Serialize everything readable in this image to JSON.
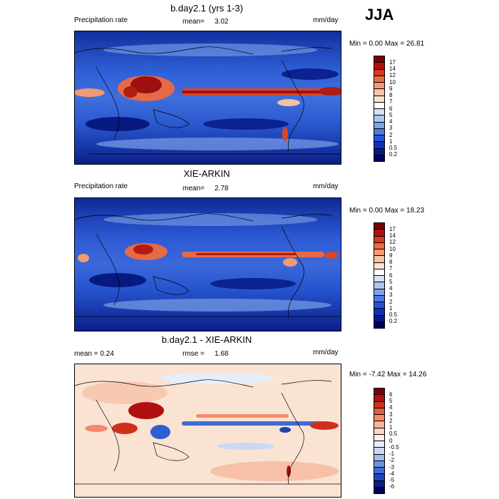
{
  "season": "JJA",
  "panels": [
    {
      "title": "b.day2.1 (yrs 1-3)",
      "left_label": "Precipitation rate",
      "mean_label": "mean=",
      "mean_value": "3.02",
      "units": "mm/day",
      "minmax": "Min =    0.00 Max =   26.81",
      "colorbar_labels": [
        "17",
        "14",
        "12",
        "10",
        "9",
        "8",
        "7",
        "6",
        "5",
        "4",
        "3",
        "2",
        "1",
        "0.5",
        "0.2"
      ]
    },
    {
      "title": "XIE-ARKIN",
      "left_label": "Precipitation rate",
      "mean_label": "mean=",
      "mean_value": "2.78",
      "units": "mm/day",
      "minmax": "Min =    0.00 Max =   18.23",
      "colorbar_labels": [
        "17",
        "14",
        "12",
        "10",
        "9",
        "8",
        "7",
        "6",
        "5",
        "4",
        "3",
        "2",
        "1",
        "0.5",
        "0.2"
      ]
    },
    {
      "title": "b.day2.1 - XIE-ARKIN",
      "left_label": "mean =    0.24",
      "rmse_label": "rmse =",
      "rmse_value": "1.68",
      "units": "mm/day",
      "minmax": "Min =  -7.42 Max =  14.26",
      "colorbar_labels": [
        "6",
        "5",
        "4",
        "3",
        "2",
        "1",
        "0.5",
        "0",
        "-0.5",
        "-1",
        "-2",
        "-3",
        "-4",
        "-5",
        "-6"
      ]
    }
  ],
  "colors": {
    "precip_scale": [
      "#7a0000",
      "#b40f0f",
      "#d8381d",
      "#ec6a43",
      "#f49a74",
      "#f8c3a6",
      "#fbe3d2",
      "#ffffff",
      "#d6e3f7",
      "#adc6f0",
      "#7fa2e8",
      "#5079e0",
      "#2752d8",
      "#1030b8",
      "#061a82",
      "#000060"
    ],
    "diff_scale": [
      "#7a0000",
      "#b01010",
      "#d0301a",
      "#e85a3c",
      "#f38a6a",
      "#f8b49a",
      "#fbd7c6",
      "#fdeee6",
      "#e6eefb",
      "#c9d9f5",
      "#9fbcec",
      "#6c95e0",
      "#3f6bd2",
      "#1d43b6",
      "#091f8a",
      "#000060"
    ]
  }
}
